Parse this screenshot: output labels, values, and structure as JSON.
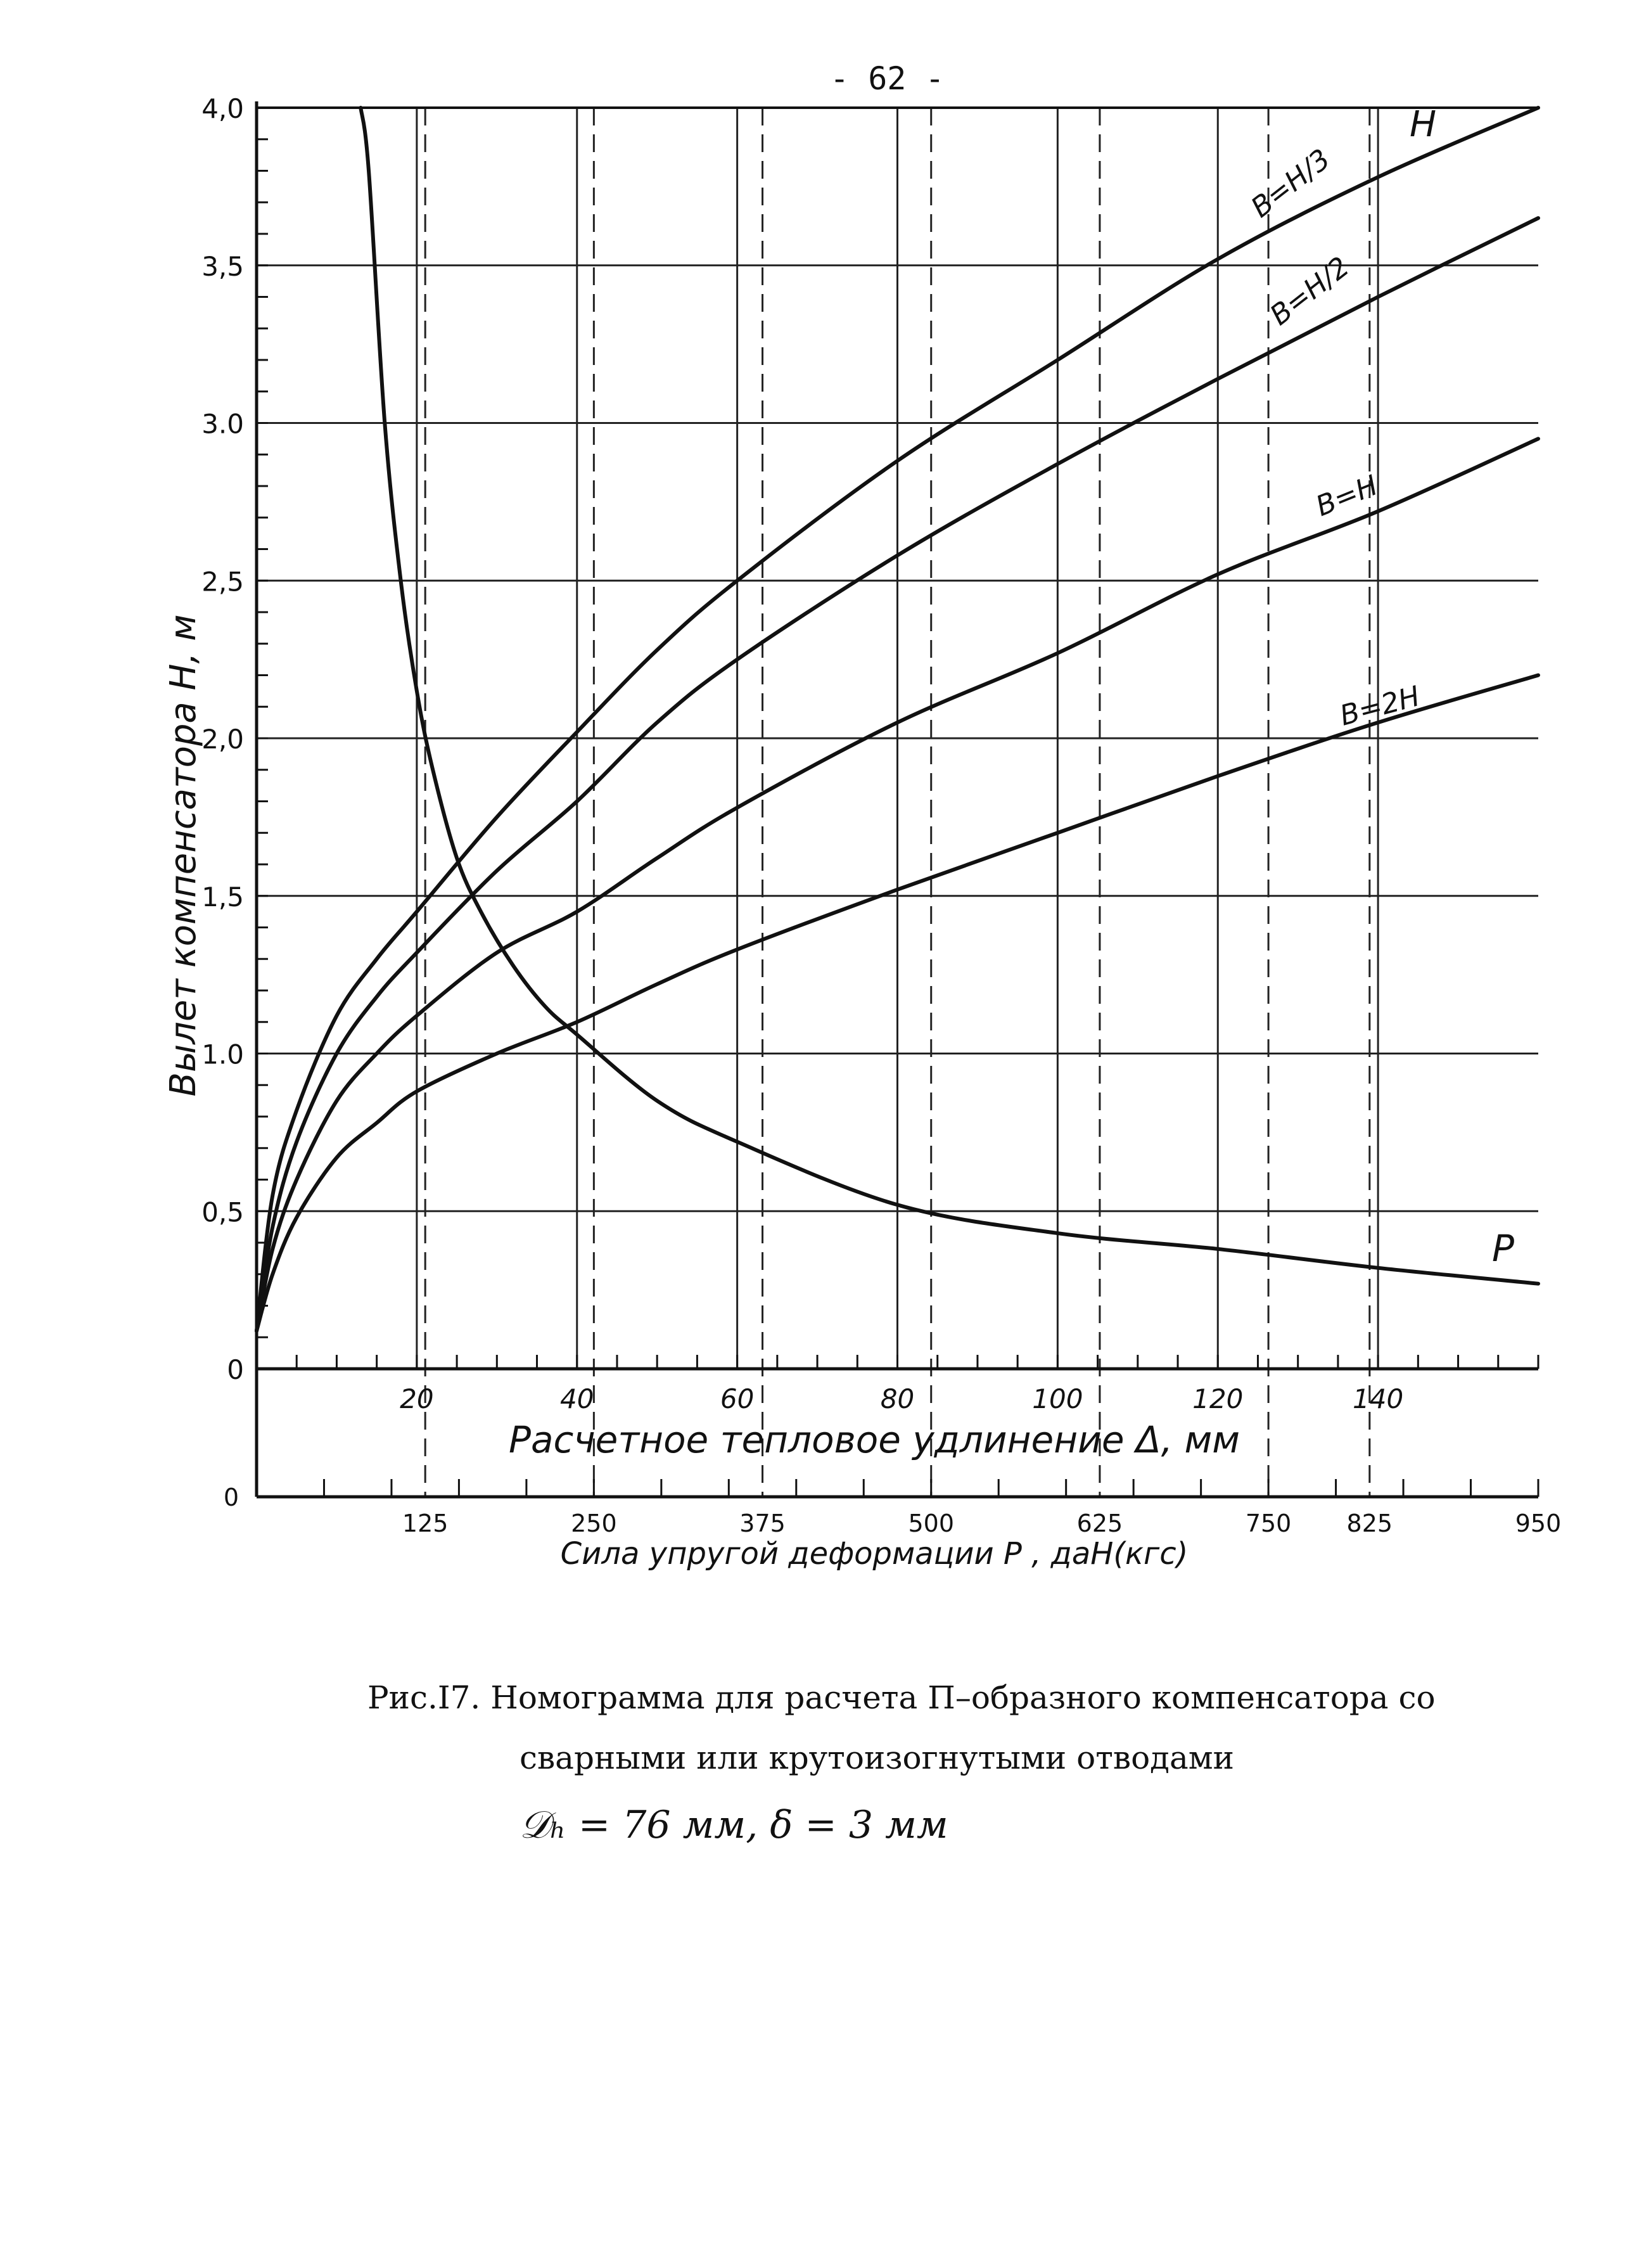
{
  "page": {
    "page_number": "- 62 -",
    "caption_line1": "Рис.I7. Номограмма для расчета П–образного компенсатора со",
    "caption_line2": "сварными или крутоизогнутыми отводами",
    "caption_line3": "𝒟ₕ = 76 мм,  δ = 3 мм"
  },
  "chart_data": {
    "type": "line",
    "title": "",
    "ylabel": "Вылет компенсатора  Н, м",
    "xlabel": "Расчетное тепловое удлинение   Δ, мм",
    "x2label": "Сила упругой   деформации    Р , даН(кгс)",
    "ylim": [
      0,
      4.0
    ],
    "xlim": [
      0,
      160
    ],
    "x2lim": [
      0,
      950
    ],
    "y_ticks": [
      "0",
      "0,5",
      "1.0",
      "1,5",
      "2,0",
      "2,5",
      "3.0",
      "3,5",
      "4,0"
    ],
    "x_ticks": [
      "20",
      "40",
      "60",
      "80",
      "100",
      "120",
      "140"
    ],
    "x2_ticks": [
      "0",
      "125",
      "250",
      "375",
      "500",
      "625",
      "750",
      "825",
      "950"
    ],
    "grid": true,
    "series": [
      {
        "name": "В=Н/3",
        "x": [
          0,
          2,
          5,
          10,
          15,
          20,
          30,
          40,
          50,
          60,
          80,
          100,
          120,
          140,
          161
        ],
        "y": [
          0.12,
          0.55,
          0.82,
          1.12,
          1.3,
          1.45,
          1.75,
          2.02,
          2.28,
          2.5,
          2.88,
          3.2,
          3.52,
          3.78,
          4.02
        ]
      },
      {
        "name": "В=Н/2",
        "x": [
          0,
          2,
          5,
          10,
          15,
          20,
          30,
          40,
          50,
          60,
          80,
          100,
          120,
          140,
          161
        ],
        "y": [
          0.12,
          0.45,
          0.72,
          1.0,
          1.18,
          1.32,
          1.58,
          1.8,
          2.05,
          2.25,
          2.58,
          2.87,
          3.14,
          3.4,
          3.65
        ]
      },
      {
        "name": "В=Н",
        "x": [
          0,
          2,
          5,
          10,
          15,
          20,
          30,
          40,
          50,
          60,
          80,
          100,
          120,
          140,
          161
        ],
        "y": [
          0.12,
          0.38,
          0.6,
          0.85,
          1.0,
          1.12,
          1.32,
          1.45,
          1.62,
          1.78,
          2.05,
          2.27,
          2.52,
          2.72,
          2.95
        ]
      },
      {
        "name": "В=2Н",
        "x": [
          0,
          2,
          5,
          10,
          15,
          20,
          30,
          40,
          50,
          60,
          80,
          100,
          120,
          140,
          161
        ],
        "y": [
          0.12,
          0.3,
          0.48,
          0.67,
          0.78,
          0.88,
          1.0,
          1.1,
          1.22,
          1.33,
          1.52,
          1.7,
          1.88,
          2.05,
          2.2
        ]
      },
      {
        "name": "Р",
        "x": [
          13,
          14,
          16,
          18,
          20,
          22,
          25,
          28,
          32,
          36,
          40,
          50,
          60,
          80,
          100,
          120,
          140,
          161
        ],
        "y": [
          4.0,
          3.8,
          3.0,
          2.5,
          2.15,
          1.9,
          1.62,
          1.45,
          1.28,
          1.15,
          1.06,
          0.85,
          0.72,
          0.52,
          0.43,
          0.38,
          0.32,
          0.27
        ]
      }
    ],
    "curve_labels": [
      "Н",
      "В=Н/3",
      "В=Н/2",
      "В=Н",
      "В=2Н",
      "Р"
    ]
  }
}
